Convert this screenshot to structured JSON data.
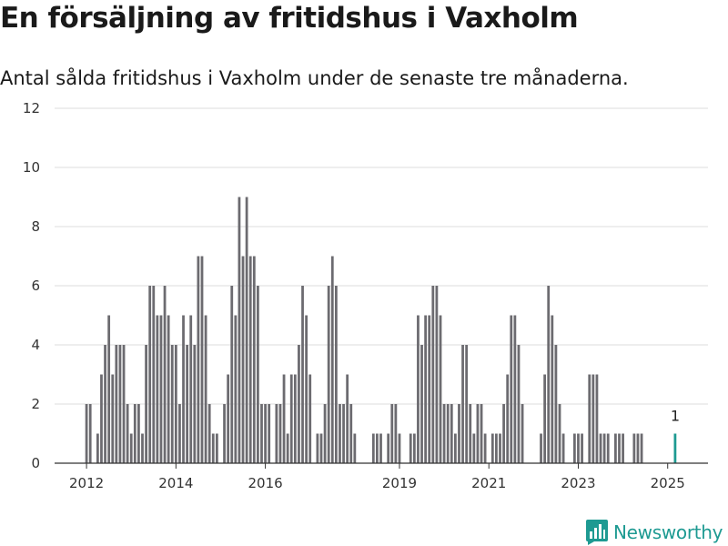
{
  "header": {
    "title": "En försäljning av fritidshus i Vaxholm",
    "subtitle": "Antal sålda fritidshus i Vaxholm under de senaste tre månaderna."
  },
  "brand": {
    "name": "Newsworthy",
    "color": "#1e9a92"
  },
  "colors": {
    "bar": "#6c6b70",
    "highlight": "#1e9a92",
    "grid": "#dddddd"
  },
  "chart_data": {
    "type": "bar",
    "title": "En försäljning av fritidshus i Vaxholm",
    "subtitle": "Antal sålda fritidshus i Vaxholm under de senaste tre månaderna.",
    "x_axis": {
      "type": "date",
      "unit": "month",
      "start": "2011-12",
      "end": "2025-04",
      "ticks": [
        "2012",
        "2014",
        "2016",
        "2019",
        "2021",
        "2023",
        "2025"
      ]
    },
    "y_axis": {
      "ylim": [
        0,
        12
      ],
      "ticks": [
        0,
        2,
        4,
        6,
        8,
        10,
        12
      ]
    },
    "grid": true,
    "legend": "none",
    "series": [
      {
        "bars": [
          [
            "2012-01",
            2
          ],
          [
            "2012-02",
            2
          ],
          [
            "2012-04",
            1
          ],
          [
            "2012-05",
            3
          ],
          [
            "2012-06",
            4
          ],
          [
            "2012-07",
            5
          ],
          [
            "2012-08",
            3
          ],
          [
            "2012-09",
            4
          ],
          [
            "2012-10",
            4
          ],
          [
            "2012-11",
            4
          ],
          [
            "2012-12",
            2
          ],
          [
            "2013-01",
            1
          ],
          [
            "2013-02",
            2
          ],
          [
            "2013-03",
            2
          ],
          [
            "2013-04",
            1
          ],
          [
            "2013-05",
            4
          ],
          [
            "2013-06",
            6
          ],
          [
            "2013-07",
            6
          ],
          [
            "2013-08",
            5
          ],
          [
            "2013-09",
            5
          ],
          [
            "2013-10",
            6
          ],
          [
            "2013-11",
            5
          ],
          [
            "2013-12",
            4
          ],
          [
            "2014-01",
            4
          ],
          [
            "2014-02",
            2
          ],
          [
            "2014-03",
            5
          ],
          [
            "2014-04",
            4
          ],
          [
            "2014-05",
            5
          ],
          [
            "2014-06",
            4
          ],
          [
            "2014-07",
            7
          ],
          [
            "2014-08",
            7
          ],
          [
            "2014-09",
            5
          ],
          [
            "2014-10",
            2
          ],
          [
            "2014-11",
            1
          ],
          [
            "2014-12",
            1
          ],
          [
            "2015-02",
            2
          ],
          [
            "2015-03",
            3
          ],
          [
            "2015-04",
            6
          ],
          [
            "2015-05",
            5
          ],
          [
            "2015-06",
            9
          ],
          [
            "2015-07",
            7
          ],
          [
            "2015-08",
            9
          ],
          [
            "2015-09",
            7
          ],
          [
            "2015-10",
            7
          ],
          [
            "2015-11",
            6
          ],
          [
            "2015-12",
            2
          ],
          [
            "2016-01",
            2
          ],
          [
            "2016-02",
            2
          ],
          [
            "2016-04",
            2
          ],
          [
            "2016-05",
            2
          ],
          [
            "2016-06",
            3
          ],
          [
            "2016-07",
            1
          ],
          [
            "2016-08",
            3
          ],
          [
            "2016-09",
            3
          ],
          [
            "2016-10",
            4
          ],
          [
            "2016-11",
            6
          ],
          [
            "2016-12",
            5
          ],
          [
            "2017-01",
            3
          ],
          [
            "2017-03",
            1
          ],
          [
            "2017-04",
            1
          ],
          [
            "2017-05",
            2
          ],
          [
            "2017-06",
            6
          ],
          [
            "2017-07",
            7
          ],
          [
            "2017-08",
            6
          ],
          [
            "2017-09",
            2
          ],
          [
            "2017-10",
            2
          ],
          [
            "2017-11",
            3
          ],
          [
            "2017-12",
            2
          ],
          [
            "2018-01",
            1
          ],
          [
            "2018-06",
            1
          ],
          [
            "2018-07",
            1
          ],
          [
            "2018-08",
            1
          ],
          [
            "2018-10",
            1
          ],
          [
            "2018-11",
            2
          ],
          [
            "2018-12",
            2
          ],
          [
            "2019-01",
            1
          ],
          [
            "2019-04",
            1
          ],
          [
            "2019-05",
            1
          ],
          [
            "2019-06",
            5
          ],
          [
            "2019-07",
            4
          ],
          [
            "2019-08",
            5
          ],
          [
            "2019-09",
            5
          ],
          [
            "2019-10",
            6
          ],
          [
            "2019-11",
            6
          ],
          [
            "2019-12",
            5
          ],
          [
            "2020-01",
            2
          ],
          [
            "2020-02",
            2
          ],
          [
            "2020-03",
            2
          ],
          [
            "2020-04",
            1
          ],
          [
            "2020-05",
            2
          ],
          [
            "2020-06",
            4
          ],
          [
            "2020-07",
            4
          ],
          [
            "2020-08",
            2
          ],
          [
            "2020-09",
            1
          ],
          [
            "2020-10",
            2
          ],
          [
            "2020-11",
            2
          ],
          [
            "2020-12",
            1
          ],
          [
            "2021-02",
            1
          ],
          [
            "2021-03",
            1
          ],
          [
            "2021-04",
            1
          ],
          [
            "2021-05",
            2
          ],
          [
            "2021-06",
            3
          ],
          [
            "2021-07",
            5
          ],
          [
            "2021-08",
            5
          ],
          [
            "2021-09",
            4
          ],
          [
            "2021-10",
            2
          ],
          [
            "2022-03",
            1
          ],
          [
            "2022-04",
            3
          ],
          [
            "2022-05",
            6
          ],
          [
            "2022-06",
            5
          ],
          [
            "2022-07",
            4
          ],
          [
            "2022-08",
            2
          ],
          [
            "2022-09",
            1
          ],
          [
            "2022-12",
            1
          ],
          [
            "2023-01",
            1
          ],
          [
            "2023-02",
            1
          ],
          [
            "2023-04",
            3
          ],
          [
            "2023-05",
            3
          ],
          [
            "2023-06",
            3
          ],
          [
            "2023-07",
            1
          ],
          [
            "2023-08",
            1
          ],
          [
            "2023-09",
            1
          ],
          [
            "2023-11",
            1
          ],
          [
            "2023-12",
            1
          ],
          [
            "2024-01",
            1
          ],
          [
            "2024-04",
            1
          ],
          [
            "2024-05",
            1
          ],
          [
            "2024-06",
            1
          ],
          [
            "2025-03",
            1,
            true
          ]
        ]
      }
    ],
    "annotations": [
      {
        "x": "2025-03",
        "y": 1,
        "text": "1"
      }
    ]
  }
}
